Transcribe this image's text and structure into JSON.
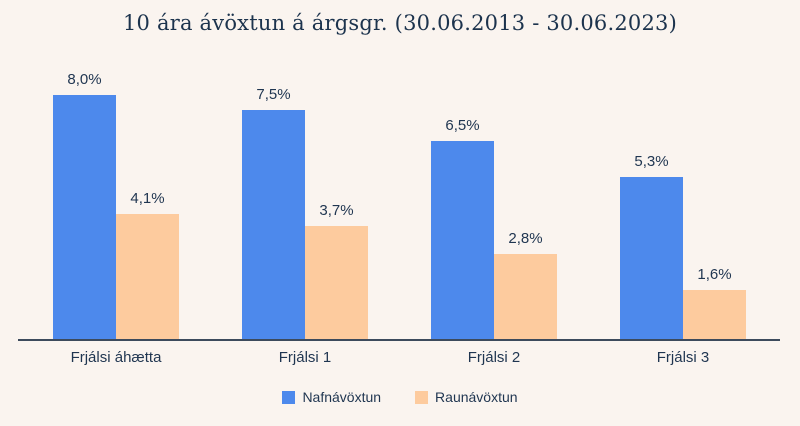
{
  "chart_data": {
    "type": "bar",
    "title": "10 ára ávöxtun á árgsgr. (30.06.2013 - 30.06.2023)",
    "categories": [
      "Frjálsi áhætta",
      "Frjálsi 1",
      "Frjálsi 2",
      "Frjálsi 3"
    ],
    "series": [
      {
        "name": "Nafnávöxtun",
        "color": "#4d89ec",
        "values": [
          8.0,
          7.5,
          6.5,
          5.3
        ],
        "labels": [
          "8,0%",
          "7,5%",
          "6,5%",
          "5,3%"
        ]
      },
      {
        "name": "Raunávöxtun",
        "color": "#fdcb9e",
        "values": [
          4.1,
          3.7,
          2.8,
          1.6
        ],
        "labels": [
          "4,1%",
          "3,7%",
          "2,8%",
          "1,6%"
        ]
      }
    ],
    "xlabel": "",
    "ylabel": "",
    "ylim": [
      0,
      8.8
    ],
    "grid": false,
    "legend_position": "bottom",
    "colors": {
      "background": "#faf4ef",
      "text": "#1f3550",
      "title": "#1c334d",
      "axis_line": "#3c4a5c"
    }
  }
}
